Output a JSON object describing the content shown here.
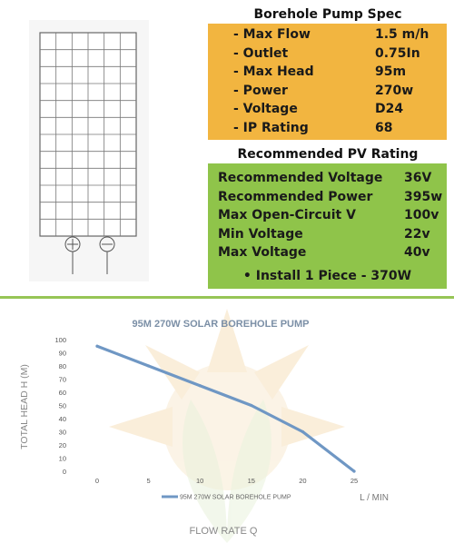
{
  "spec": {
    "title": "Borehole Pump Spec",
    "rows": [
      {
        "label": "- Max Flow",
        "value": "1.5 m/h"
      },
      {
        "label": "- Outlet",
        "value": "0.75In"
      },
      {
        "label": "- Max Head",
        "value": "95m"
      },
      {
        "label": "- Power",
        "value": "270w"
      },
      {
        "label": "- Voltage",
        "value": "D24"
      },
      {
        "label": "- IP Rating",
        "value": "68"
      }
    ]
  },
  "pv": {
    "title": "Recommended PV Rating",
    "rows": [
      {
        "label": "Recommended Voltage",
        "value": "36V"
      },
      {
        "label": "Recommended Power",
        "value": "395w"
      },
      {
        "label": "Max Open-Circuit V",
        "value": "100v"
      },
      {
        "label": "Min Voltage",
        "value": "22v"
      },
      {
        "label": "Max Voltage",
        "value": "40v"
      }
    ],
    "install": "•  Install 1 Piece - 370W"
  },
  "colors": {
    "spec_bg": "#f2b540",
    "pv_bg": "#8fc44a",
    "divider": "#96c556",
    "series": "#6f97c4",
    "chart_title": "#7b8fa6",
    "axis_text": "#555555"
  },
  "icons": [
    "solar-panel-icon",
    "plus-terminal-icon",
    "minus-terminal-icon",
    "sun-watermark"
  ],
  "chart_data": {
    "type": "line",
    "title": "95M 270W SOLAR BOREHOLE PUMP",
    "xlabel": "FLOW RATE Q",
    "ylabel": "TOTAL HEAD H (M)",
    "xunit": "L / MIN",
    "xlim": [
      0,
      25
    ],
    "ylim": [
      0,
      100
    ],
    "xticks": [
      0,
      5,
      10,
      15,
      20,
      25
    ],
    "yticks": [
      0,
      10,
      20,
      30,
      40,
      50,
      60,
      70,
      80,
      90,
      100
    ],
    "grid": false,
    "legend": "bottom",
    "series": [
      {
        "name": "95M 270W SOLAR BOREHOLE PUMP",
        "x": [
          0,
          5,
          10,
          15,
          20,
          25
        ],
        "y": [
          95,
          80,
          65,
          50,
          30,
          0
        ]
      }
    ]
  }
}
